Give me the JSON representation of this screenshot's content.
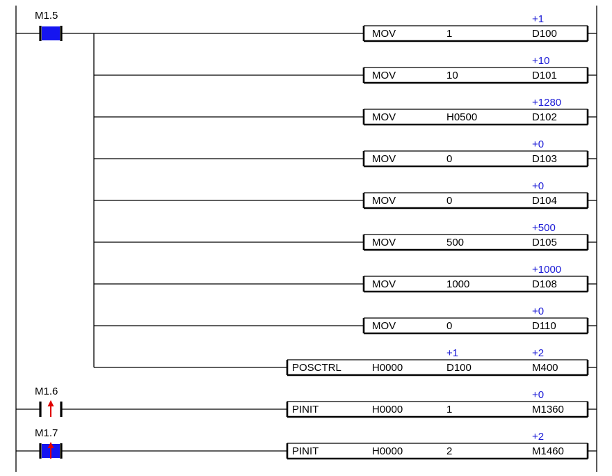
{
  "colors": {
    "line": "#000000",
    "current_value": "#1a1ad6",
    "energized_contact": "#1515f0",
    "edge_arrow": "#e00000",
    "background": "#ffffff"
  },
  "rungs": [
    {
      "contact": {
        "label": "M1.5",
        "type": "normally-open",
        "energized": true,
        "edge_arrow": false
      },
      "instructions": [
        {
          "op": "MOV",
          "args": [
            "",
            "1",
            "D100"
          ],
          "values": [
            "",
            "",
            "+1"
          ]
        },
        {
          "op": "MOV",
          "args": [
            "",
            "10",
            "D101"
          ],
          "values": [
            "",
            "",
            "+10"
          ]
        },
        {
          "op": "MOV",
          "args": [
            "",
            "H0500",
            "D102"
          ],
          "values": [
            "",
            "",
            "+1280"
          ]
        },
        {
          "op": "MOV",
          "args": [
            "",
            "0",
            "D103"
          ],
          "values": [
            "",
            "",
            "+0"
          ]
        },
        {
          "op": "MOV",
          "args": [
            "",
            "0",
            "D104"
          ],
          "values": [
            "",
            "",
            "+0"
          ]
        },
        {
          "op": "MOV",
          "args": [
            "",
            "500",
            "D105"
          ],
          "values": [
            "",
            "",
            "+500"
          ]
        },
        {
          "op": "MOV",
          "args": [
            "",
            "1000",
            "D108"
          ],
          "values": [
            "",
            "",
            "+1000"
          ]
        },
        {
          "op": "MOV",
          "args": [
            "",
            "0",
            "D110"
          ],
          "values": [
            "",
            "",
            "+0"
          ]
        },
        {
          "op": "POSCTRL",
          "args": [
            "H0000",
            "D100",
            "M400"
          ],
          "values": [
            "",
            "+1",
            "+2"
          ]
        }
      ]
    },
    {
      "contact": {
        "label": "M1.6",
        "type": "rising-edge",
        "energized": false,
        "edge_arrow": true
      },
      "instructions": [
        {
          "op": "PINIT",
          "args": [
            "H0000",
            "1",
            "M1360"
          ],
          "values": [
            "",
            "",
            "+0"
          ]
        }
      ]
    },
    {
      "contact": {
        "label": "M1.7",
        "type": "rising-edge",
        "energized": true,
        "edge_arrow": true
      },
      "instructions": [
        {
          "op": "PINIT",
          "args": [
            "H0000",
            "2",
            "M1460"
          ],
          "values": [
            "",
            "",
            "+2"
          ]
        }
      ]
    }
  ]
}
